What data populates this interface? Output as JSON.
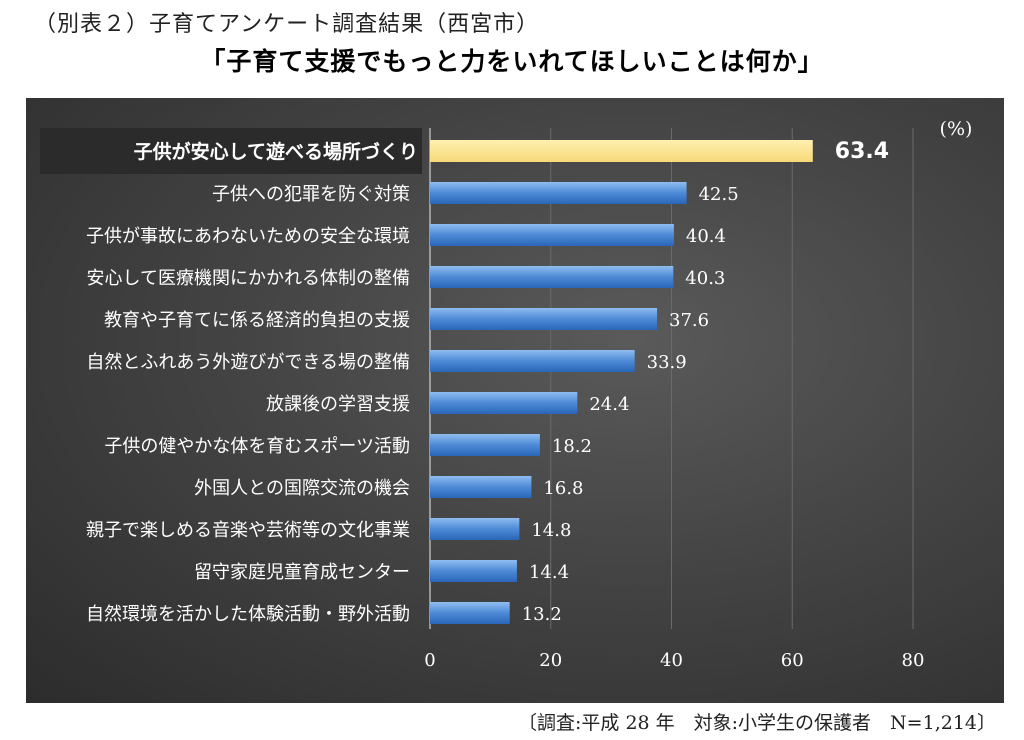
{
  "header": {
    "line1": "（別表２）子育てアンケート調査結果（西宮市）",
    "line2": "「子育て支援でもっと力をいれてほしいことは何か」"
  },
  "footer": {
    "note": "〔調査:平成 28 年　対象:小学生の保護者　N=1,214〕"
  },
  "colors": {
    "highlight_bar": "#fde58c",
    "bar_top": "#7fb2ea",
    "bar_bottom": "#2f71c6",
    "panel": "#3f3f3f",
    "highlight_label_bg": "#2b2b2b"
  },
  "chart_data": {
    "type": "bar",
    "orientation": "horizontal",
    "unit_label": "(%)",
    "xlim": [
      0,
      80
    ],
    "xticks": [
      "0",
      "20",
      "40",
      "60",
      "80"
    ],
    "grid": "vertical",
    "highlight_index": 0,
    "categories": [
      "子供が安心して遊べる場所づくり",
      "子供への犯罪を防ぐ対策",
      "子供が事故にあわないための安全な環境",
      "安心して医療機関にかかれる体制の整備",
      "教育や子育てに係る経済的負担の支援",
      "自然とふれあう外遊びができる場の整備",
      "放課後の学習支援",
      "子供の健やかな体を育むスポーツ活動",
      "外国人との国際交流の機会",
      "親子で楽しめる音楽や芸術等の文化事業",
      "留守家庭児童育成センター",
      "自然環境を活かした体験活動・野外活動"
    ],
    "values": [
      63.4,
      42.5,
      40.4,
      40.3,
      37.6,
      33.9,
      24.4,
      18.2,
      16.8,
      14.8,
      14.4,
      13.2
    ],
    "value_labels": [
      "63.4",
      "42.5",
      "40.4",
      "40.3",
      "37.6",
      "33.9",
      "24.4",
      "18.2",
      "16.8",
      "14.8",
      "14.4",
      "13.2"
    ]
  }
}
